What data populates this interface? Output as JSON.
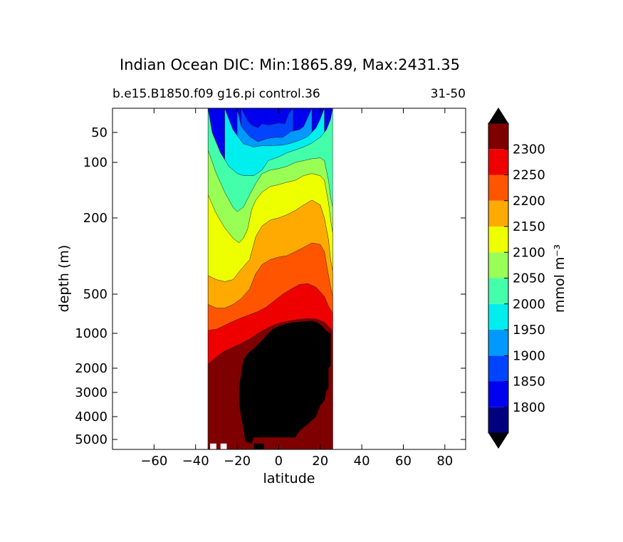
{
  "chart_data": {
    "type": "heatmap",
    "subtype": "filled-contour",
    "title": "Indian Ocean DIC: Min:1865.89, Max:2431.35",
    "subtitle_left": "b.e15.B1850.f09 g16.pi control.36",
    "subtitle_right": "31-50",
    "xlabel": "latitude",
    "ylabel": "depth (m)",
    "xlim": [
      -80,
      90
    ],
    "ylim": [
      5500,
      20
    ],
    "xticks": [
      -60,
      -40,
      -20,
      0,
      20,
      40,
      60,
      80
    ],
    "xtick_labels": [
      "−60",
      "−40",
      "−20",
      "0",
      "20",
      "40",
      "60",
      "80"
    ],
    "yticks": [
      50,
      100,
      200,
      500,
      1000,
      2000,
      3000,
      4000,
      5000
    ],
    "ytick_labels": [
      "50",
      "100",
      "200",
      "500",
      "1000",
      "2000",
      "3000",
      "4000",
      "5000"
    ],
    "data_extent_latitude": [
      -34,
      26
    ],
    "colorbar": {
      "label": "mmol m⁻³",
      "levels": [
        1750,
        1800,
        1850,
        1900,
        1950,
        2000,
        2050,
        2100,
        2150,
        2200,
        2250,
        2300,
        2350
      ],
      "tick_labels": [
        "1800",
        "1850",
        "1900",
        "1950",
        "2000",
        "2050",
        "2100",
        "2150",
        "2200",
        "2250",
        "2300"
      ],
      "colors": [
        "#00007f",
        "#0000ee",
        "#0044ff",
        "#0099ff",
        "#00eeee",
        "#44ffaa",
        "#99ff55",
        "#eeff00",
        "#ffaa00",
        "#ff5500",
        "#ee0000",
        "#7f0000"
      ],
      "extend": "both"
    },
    "missing_color": "#000000",
    "bands": [
      {
        "level_min": 1850,
        "color": "#0044ff",
        "profile": [
          [
            -18,
            20
          ],
          [
            -15,
            32
          ],
          [
            -13,
            38
          ],
          [
            -10,
            42
          ],
          [
            -8,
            36
          ],
          [
            -5,
            38
          ],
          [
            0,
            35
          ],
          [
            3,
            36
          ],
          [
            5,
            24
          ],
          [
            7,
            20
          ]
        ]
      },
      {
        "level_min": 1900,
        "color": "#0099ff",
        "profile": [
          [
            -20,
            20
          ],
          [
            -18,
            40
          ],
          [
            -14,
            55
          ],
          [
            -10,
            62
          ],
          [
            -6,
            58
          ],
          [
            -2,
            56
          ],
          [
            2,
            56
          ],
          [
            6,
            48
          ],
          [
            10,
            45
          ],
          [
            12,
            40
          ],
          [
            16,
            20
          ]
        ]
      },
      {
        "level_min": 1950,
        "color": "#00eeee",
        "profile": [
          [
            -26,
            20
          ],
          [
            -22,
            45
          ],
          [
            -17,
            65
          ],
          [
            -12,
            70
          ],
          [
            -8,
            68
          ],
          [
            -4,
            68
          ],
          [
            2,
            67
          ],
          [
            6,
            64
          ],
          [
            10,
            60
          ],
          [
            14,
            55
          ],
          [
            18,
            42
          ],
          [
            20,
            30
          ],
          [
            22,
            20
          ]
        ]
      },
      {
        "level_min": 2000,
        "color": "#44ffaa",
        "profile": [
          [
            -34,
            20
          ],
          [
            -32,
            50
          ],
          [
            -28,
            80
          ],
          [
            -24,
            105
          ],
          [
            -20,
            115
          ],
          [
            -17,
            118
          ],
          [
            -12,
            118
          ],
          [
            -8,
            110
          ],
          [
            -5,
            96
          ],
          [
            0,
            88
          ],
          [
            4,
            80
          ],
          [
            8,
            75
          ],
          [
            12,
            70
          ],
          [
            16,
            64
          ],
          [
            20,
            56
          ],
          [
            23,
            45
          ],
          [
            25,
            30
          ],
          [
            26,
            20
          ]
        ]
      },
      {
        "level_min": 2050,
        "color": "#99ff55",
        "profile": [
          [
            -34,
            20
          ],
          [
            -34,
            75
          ],
          [
            -30,
            115
          ],
          [
            -26,
            145
          ],
          [
            -22,
            175
          ],
          [
            -20,
            185
          ],
          [
            -17,
            175
          ],
          [
            -14,
            150
          ],
          [
            -11,
            130
          ],
          [
            -8,
            115
          ],
          [
            -4,
            110
          ],
          [
            0,
            108
          ],
          [
            4,
            105
          ],
          [
            8,
            100
          ],
          [
            12,
            96
          ],
          [
            16,
            92
          ],
          [
            20,
            90
          ],
          [
            22,
            96
          ],
          [
            24,
            125
          ],
          [
            25,
            155
          ],
          [
            26,
            175
          ]
        ]
      },
      {
        "level_min": 2100,
        "color": "#eeff00",
        "profile": [
          [
            -34,
            150
          ],
          [
            -30,
            190
          ],
          [
            -26,
            225
          ],
          [
            -22,
            255
          ],
          [
            -19,
            270
          ],
          [
            -17,
            255
          ],
          [
            -15,
            230
          ],
          [
            -13,
            180
          ],
          [
            -11,
            160
          ],
          [
            -8,
            145
          ],
          [
            -4,
            135
          ],
          [
            0,
            132
          ],
          [
            4,
            128
          ],
          [
            8,
            125
          ],
          [
            12,
            118
          ],
          [
            16,
            115
          ],
          [
            20,
            118
          ],
          [
            22,
            125
          ],
          [
            24,
            165
          ],
          [
            25,
            205
          ],
          [
            26,
            240
          ]
        ]
      },
      {
        "level_min": 2150,
        "color": "#ffaa00",
        "profile": [
          [
            -34,
            400
          ],
          [
            -30,
            420
          ],
          [
            -26,
            430
          ],
          [
            -22,
            420
          ],
          [
            -18,
            370
          ],
          [
            -14,
            330
          ],
          [
            -11,
            250
          ],
          [
            -8,
            220
          ],
          [
            -4,
            205
          ],
          [
            0,
            200
          ],
          [
            4,
            192
          ],
          [
            8,
            182
          ],
          [
            12,
            170
          ],
          [
            16,
            160
          ],
          [
            20,
            170
          ],
          [
            22,
            200
          ],
          [
            24,
            260
          ],
          [
            25,
            330
          ],
          [
            26,
            380
          ]
        ]
      },
      {
        "level_min": 2200,
        "color": "#ff5500",
        "profile": [
          [
            -34,
            600
          ],
          [
            -30,
            640
          ],
          [
            -26,
            640
          ],
          [
            -22,
            600
          ],
          [
            -18,
            540
          ],
          [
            -14,
            470
          ],
          [
            -11,
            390
          ],
          [
            -8,
            350
          ],
          [
            -4,
            330
          ],
          [
            0,
            320
          ],
          [
            4,
            315
          ],
          [
            8,
            300
          ],
          [
            12,
            285
          ],
          [
            16,
            270
          ],
          [
            20,
            275
          ],
          [
            22,
            300
          ],
          [
            24,
            400
          ],
          [
            25,
            460
          ],
          [
            26,
            520
          ]
        ]
      },
      {
        "level_min": 2250,
        "color": "#ee0000",
        "profile": [
          [
            -34,
            950
          ],
          [
            -30,
            930
          ],
          [
            -26,
            870
          ],
          [
            -22,
            810
          ],
          [
            -18,
            760
          ],
          [
            -14,
            720
          ],
          [
            -10,
            680
          ],
          [
            -6,
            630
          ],
          [
            -2,
            560
          ],
          [
            2,
            500
          ],
          [
            6,
            470
          ],
          [
            10,
            445
          ],
          [
            14,
            440
          ],
          [
            18,
            460
          ],
          [
            22,
            520
          ],
          [
            24,
            620
          ],
          [
            26,
            700
          ]
        ]
      },
      {
        "level_min": 2300,
        "color": "#7f0000",
        "profile": [
          [
            -34,
            1850
          ],
          [
            -30,
            1600
          ],
          [
            -26,
            1420
          ],
          [
            -22,
            1320
          ],
          [
            -18,
            1220
          ],
          [
            -14,
            1120
          ],
          [
            -10,
            1000
          ],
          [
            -6,
            920
          ],
          [
            -2,
            860
          ],
          [
            2,
            820
          ],
          [
            6,
            800
          ],
          [
            10,
            780
          ],
          [
            14,
            770
          ],
          [
            18,
            775
          ],
          [
            22,
            820
          ],
          [
            24,
            880
          ],
          [
            26,
            960
          ]
        ]
      }
    ]
  }
}
